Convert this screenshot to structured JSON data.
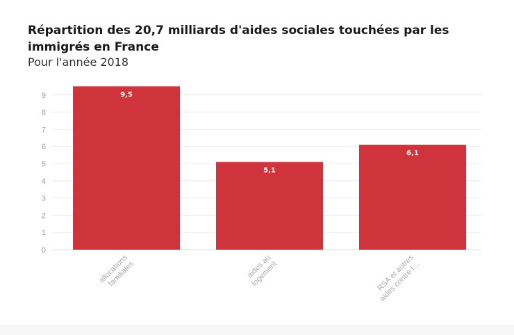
{
  "chart_data": {
    "type": "bar",
    "title": "Répartition des 20,7 milliards d'aides sociales touchées par les immigrés en France",
    "subtitle": "Pour l'année 2018",
    "categories": [
      "allocations familiales",
      "aides au logement",
      "RSA et autres aides contre l…"
    ],
    "category_lines": [
      [
        "allocations",
        "familiales"
      ],
      [
        "aides au",
        "logement"
      ],
      [
        "RSA et autres",
        "aides contre l…"
      ]
    ],
    "values": [
      9.5,
      5.1,
      6.1
    ],
    "data_labels": [
      "9,5",
      "5,1",
      "6,1"
    ],
    "yticks": [
      "0",
      "1",
      "2",
      "3",
      "4",
      "5",
      "6",
      "7",
      "8",
      "9"
    ],
    "ylim": [
      0,
      9.5
    ],
    "grid": true,
    "bar_color": "#cf333c"
  }
}
